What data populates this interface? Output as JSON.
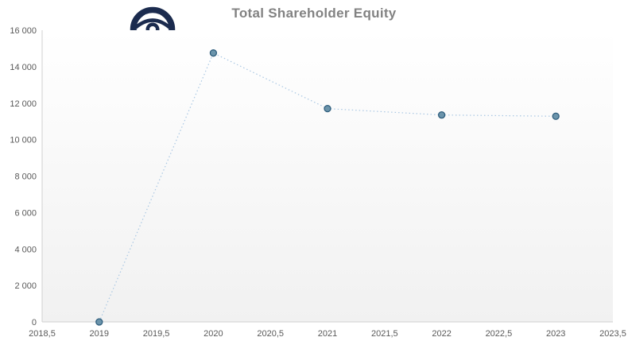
{
  "title": {
    "text": "Total Shareholder Equity",
    "color": "#828282"
  },
  "icon": {
    "name": "eye-magnifier",
    "color": "#1b2b4e"
  },
  "chart_data": {
    "type": "line",
    "title": "Total Shareholder Equity",
    "xlabel": "",
    "ylabel": "",
    "grid": false,
    "legend": false,
    "xlim": [
      2018.5,
      2023.5
    ],
    "ylim": [
      0,
      16000
    ],
    "series": [
      {
        "name": "Total Shareholder Equity",
        "x": [
          2019,
          2020,
          2021,
          2022,
          2023
        ],
        "values": [
          0,
          14750,
          11700,
          11350,
          11280
        ]
      }
    ],
    "x_ticks": [
      {
        "value": 2018.5,
        "label": "2018,5"
      },
      {
        "value": 2019,
        "label": "2019"
      },
      {
        "value": 2019.5,
        "label": "2019,5"
      },
      {
        "value": 2020,
        "label": "2020"
      },
      {
        "value": 2020.5,
        "label": "2020,5"
      },
      {
        "value": 2021,
        "label": "2021"
      },
      {
        "value": 2021.5,
        "label": "2021,5"
      },
      {
        "value": 2022,
        "label": "2022"
      },
      {
        "value": 2022.5,
        "label": "2022,5"
      },
      {
        "value": 2023,
        "label": "2023"
      },
      {
        "value": 2023.5,
        "label": "2023,5"
      }
    ],
    "y_ticks": [
      {
        "value": 0,
        "label": "0"
      },
      {
        "value": 2000,
        "label": "2 000"
      },
      {
        "value": 4000,
        "label": "4 000"
      },
      {
        "value": 6000,
        "label": "6 000"
      },
      {
        "value": 8000,
        "label": "8 000"
      },
      {
        "value": 10000,
        "label": "10 000"
      },
      {
        "value": 12000,
        "label": "12 000"
      },
      {
        "value": 14000,
        "label": "14 000"
      },
      {
        "value": 16000,
        "label": "16 000"
      }
    ],
    "line_style": "dotted",
    "line_color": "#a9c7e3",
    "marker_fill": "#6b94ab",
    "marker_stroke": "#2f5e7d",
    "axis_color": "#d0d0d0",
    "tick_label_color": "#595959",
    "plot_bg_gradient": [
      "#ffffff",
      "#f1f1f1"
    ]
  }
}
